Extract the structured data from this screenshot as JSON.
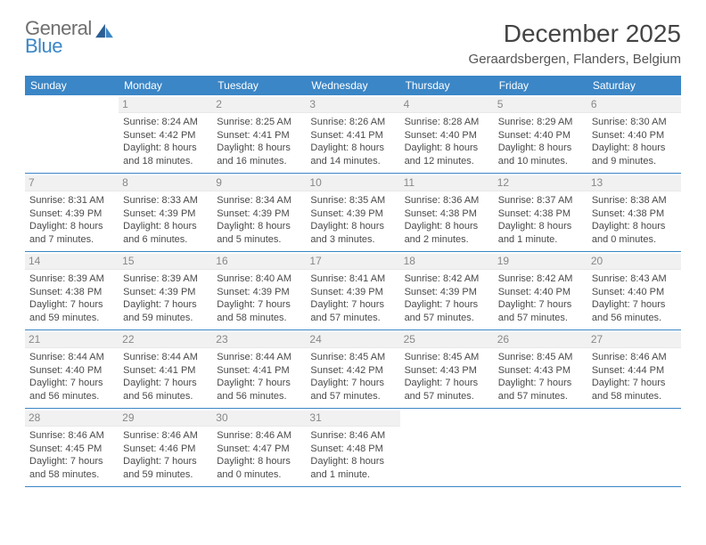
{
  "logo": {
    "text1": "General",
    "text2": "Blue"
  },
  "title": "December 2025",
  "location": "Geraardsbergen, Flanders, Belgium",
  "colors": {
    "header_bg": "#3b86c6",
    "header_text": "#ffffff",
    "daynum_bg": "#f1f1f1",
    "daynum_text": "#888888",
    "body_text": "#4a4a4a",
    "rule": "#3b86c6",
    "logo_gray": "#6f6f6f",
    "logo_blue": "#3b86c6"
  },
  "weekdays": [
    "Sunday",
    "Monday",
    "Tuesday",
    "Wednesday",
    "Thursday",
    "Friday",
    "Saturday"
  ],
  "weeks": [
    [
      null,
      {
        "n": "1",
        "sr": "Sunrise: 8:24 AM",
        "ss": "Sunset: 4:42 PM",
        "d1": "Daylight: 8 hours",
        "d2": "and 18 minutes."
      },
      {
        "n": "2",
        "sr": "Sunrise: 8:25 AM",
        "ss": "Sunset: 4:41 PM",
        "d1": "Daylight: 8 hours",
        "d2": "and 16 minutes."
      },
      {
        "n": "3",
        "sr": "Sunrise: 8:26 AM",
        "ss": "Sunset: 4:41 PM",
        "d1": "Daylight: 8 hours",
        "d2": "and 14 minutes."
      },
      {
        "n": "4",
        "sr": "Sunrise: 8:28 AM",
        "ss": "Sunset: 4:40 PM",
        "d1": "Daylight: 8 hours",
        "d2": "and 12 minutes."
      },
      {
        "n": "5",
        "sr": "Sunrise: 8:29 AM",
        "ss": "Sunset: 4:40 PM",
        "d1": "Daylight: 8 hours",
        "d2": "and 10 minutes."
      },
      {
        "n": "6",
        "sr": "Sunrise: 8:30 AM",
        "ss": "Sunset: 4:40 PM",
        "d1": "Daylight: 8 hours",
        "d2": "and 9 minutes."
      }
    ],
    [
      {
        "n": "7",
        "sr": "Sunrise: 8:31 AM",
        "ss": "Sunset: 4:39 PM",
        "d1": "Daylight: 8 hours",
        "d2": "and 7 minutes."
      },
      {
        "n": "8",
        "sr": "Sunrise: 8:33 AM",
        "ss": "Sunset: 4:39 PM",
        "d1": "Daylight: 8 hours",
        "d2": "and 6 minutes."
      },
      {
        "n": "9",
        "sr": "Sunrise: 8:34 AM",
        "ss": "Sunset: 4:39 PM",
        "d1": "Daylight: 8 hours",
        "d2": "and 5 minutes."
      },
      {
        "n": "10",
        "sr": "Sunrise: 8:35 AM",
        "ss": "Sunset: 4:39 PM",
        "d1": "Daylight: 8 hours",
        "d2": "and 3 minutes."
      },
      {
        "n": "11",
        "sr": "Sunrise: 8:36 AM",
        "ss": "Sunset: 4:38 PM",
        "d1": "Daylight: 8 hours",
        "d2": "and 2 minutes."
      },
      {
        "n": "12",
        "sr": "Sunrise: 8:37 AM",
        "ss": "Sunset: 4:38 PM",
        "d1": "Daylight: 8 hours",
        "d2": "and 1 minute."
      },
      {
        "n": "13",
        "sr": "Sunrise: 8:38 AM",
        "ss": "Sunset: 4:38 PM",
        "d1": "Daylight: 8 hours",
        "d2": "and 0 minutes."
      }
    ],
    [
      {
        "n": "14",
        "sr": "Sunrise: 8:39 AM",
        "ss": "Sunset: 4:38 PM",
        "d1": "Daylight: 7 hours",
        "d2": "and 59 minutes."
      },
      {
        "n": "15",
        "sr": "Sunrise: 8:39 AM",
        "ss": "Sunset: 4:39 PM",
        "d1": "Daylight: 7 hours",
        "d2": "and 59 minutes."
      },
      {
        "n": "16",
        "sr": "Sunrise: 8:40 AM",
        "ss": "Sunset: 4:39 PM",
        "d1": "Daylight: 7 hours",
        "d2": "and 58 minutes."
      },
      {
        "n": "17",
        "sr": "Sunrise: 8:41 AM",
        "ss": "Sunset: 4:39 PM",
        "d1": "Daylight: 7 hours",
        "d2": "and 57 minutes."
      },
      {
        "n": "18",
        "sr": "Sunrise: 8:42 AM",
        "ss": "Sunset: 4:39 PM",
        "d1": "Daylight: 7 hours",
        "d2": "and 57 minutes."
      },
      {
        "n": "19",
        "sr": "Sunrise: 8:42 AM",
        "ss": "Sunset: 4:40 PM",
        "d1": "Daylight: 7 hours",
        "d2": "and 57 minutes."
      },
      {
        "n": "20",
        "sr": "Sunrise: 8:43 AM",
        "ss": "Sunset: 4:40 PM",
        "d1": "Daylight: 7 hours",
        "d2": "and 56 minutes."
      }
    ],
    [
      {
        "n": "21",
        "sr": "Sunrise: 8:44 AM",
        "ss": "Sunset: 4:40 PM",
        "d1": "Daylight: 7 hours",
        "d2": "and 56 minutes."
      },
      {
        "n": "22",
        "sr": "Sunrise: 8:44 AM",
        "ss": "Sunset: 4:41 PM",
        "d1": "Daylight: 7 hours",
        "d2": "and 56 minutes."
      },
      {
        "n": "23",
        "sr": "Sunrise: 8:44 AM",
        "ss": "Sunset: 4:41 PM",
        "d1": "Daylight: 7 hours",
        "d2": "and 56 minutes."
      },
      {
        "n": "24",
        "sr": "Sunrise: 8:45 AM",
        "ss": "Sunset: 4:42 PM",
        "d1": "Daylight: 7 hours",
        "d2": "and 57 minutes."
      },
      {
        "n": "25",
        "sr": "Sunrise: 8:45 AM",
        "ss": "Sunset: 4:43 PM",
        "d1": "Daylight: 7 hours",
        "d2": "and 57 minutes."
      },
      {
        "n": "26",
        "sr": "Sunrise: 8:45 AM",
        "ss": "Sunset: 4:43 PM",
        "d1": "Daylight: 7 hours",
        "d2": "and 57 minutes."
      },
      {
        "n": "27",
        "sr": "Sunrise: 8:46 AM",
        "ss": "Sunset: 4:44 PM",
        "d1": "Daylight: 7 hours",
        "d2": "and 58 minutes."
      }
    ],
    [
      {
        "n": "28",
        "sr": "Sunrise: 8:46 AM",
        "ss": "Sunset: 4:45 PM",
        "d1": "Daylight: 7 hours",
        "d2": "and 58 minutes."
      },
      {
        "n": "29",
        "sr": "Sunrise: 8:46 AM",
        "ss": "Sunset: 4:46 PM",
        "d1": "Daylight: 7 hours",
        "d2": "and 59 minutes."
      },
      {
        "n": "30",
        "sr": "Sunrise: 8:46 AM",
        "ss": "Sunset: 4:47 PM",
        "d1": "Daylight: 8 hours",
        "d2": "and 0 minutes."
      },
      {
        "n": "31",
        "sr": "Sunrise: 8:46 AM",
        "ss": "Sunset: 4:48 PM",
        "d1": "Daylight: 8 hours",
        "d2": "and 1 minute."
      },
      null,
      null,
      null
    ]
  ]
}
